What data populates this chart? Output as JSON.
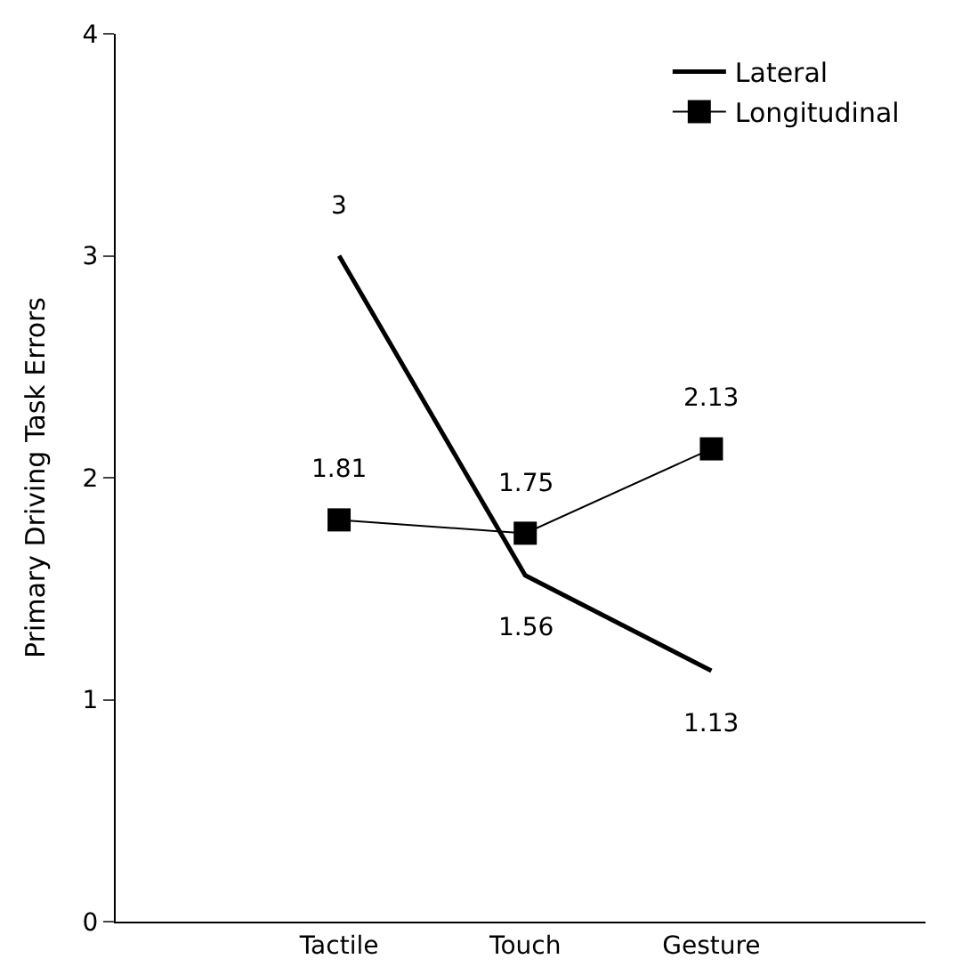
{
  "chart_data": {
    "type": "line",
    "ylabel": "Primary Driving Task Errors",
    "categories": [
      "Tactile",
      "Touch",
      "Gesture"
    ],
    "series": [
      {
        "name": "Lateral",
        "color": "#000000",
        "values": [
          3,
          1.56,
          1.13
        ],
        "marker": "none"
      },
      {
        "name": "Longitudinal",
        "color": "#000000",
        "values": [
          1.81,
          1.75,
          2.13
        ],
        "marker": "square"
      }
    ],
    "ylim": [
      0,
      4
    ],
    "yticks": [
      0,
      1,
      2,
      3,
      4
    ],
    "grid": false,
    "legend": "top right",
    "data_labels": true,
    "line_style": "solid"
  }
}
